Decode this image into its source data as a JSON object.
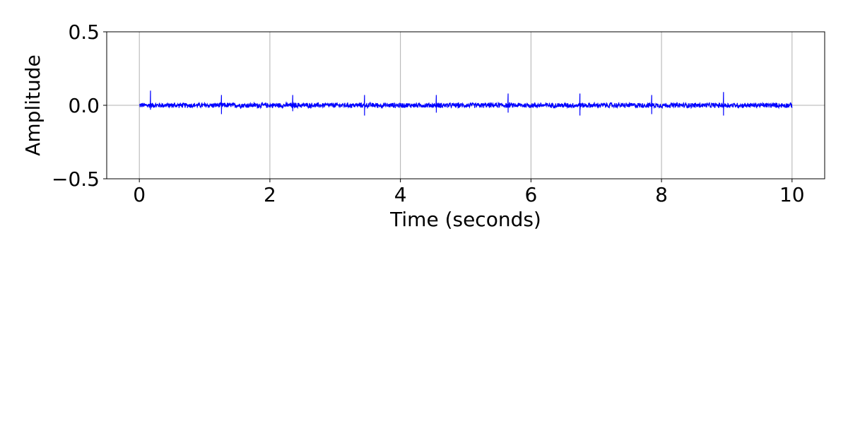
{
  "chart_data": {
    "type": "line",
    "title": "",
    "xlabel": "Time (seconds)",
    "ylabel": "Amplitude",
    "xlim": [
      -0.5,
      10.5
    ],
    "ylim": [
      -0.5,
      0.5
    ],
    "xticks": [
      0,
      2,
      4,
      6,
      8,
      10
    ],
    "xtick_labels": [
      "0",
      "2",
      "4",
      "6",
      "8",
      "10"
    ],
    "yticks": [
      -0.5,
      0.0,
      0.5
    ],
    "ytick_labels": [
      "−0.5",
      "0.0",
      "0.5"
    ],
    "grid": true,
    "series": [
      {
        "color": "#0000ff",
        "x_range": [
          0,
          10
        ],
        "noise_amplitude": 0.02,
        "spikes": [
          {
            "x": 0.17,
            "max": 0.1,
            "min": -0.03
          },
          {
            "x": 1.26,
            "max": 0.07,
            "min": -0.06
          },
          {
            "x": 2.35,
            "max": 0.07,
            "min": -0.04
          },
          {
            "x": 3.45,
            "max": 0.07,
            "min": -0.07
          },
          {
            "x": 4.55,
            "max": 0.07,
            "min": -0.05
          },
          {
            "x": 5.65,
            "max": 0.08,
            "min": -0.05
          },
          {
            "x": 6.75,
            "max": 0.08,
            "min": -0.07
          },
          {
            "x": 7.85,
            "max": 0.07,
            "min": -0.06
          },
          {
            "x": 8.95,
            "max": 0.09,
            "min": -0.07
          }
        ]
      }
    ]
  }
}
